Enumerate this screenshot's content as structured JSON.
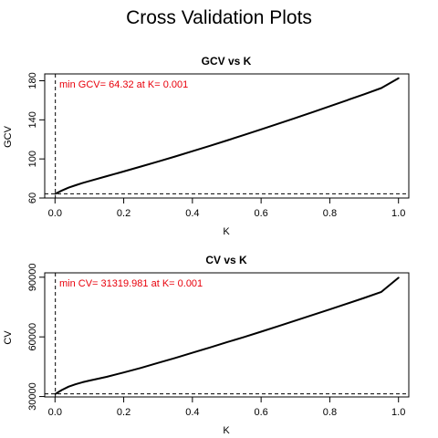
{
  "main_title": "Cross Validation Plots",
  "chart_data": [
    {
      "type": "line",
      "title": "GCV vs K",
      "xlabel": "K",
      "ylabel": "GCV",
      "xlim": [
        -0.03,
        1.03
      ],
      "ylim": [
        60,
        187
      ],
      "x_ticks": [
        0,
        0.2,
        0.4,
        0.6,
        0.8,
        1
      ],
      "x_tick_labels": [
        "0.0",
        "0.2",
        "0.4",
        "0.6",
        "0.8",
        "1.0"
      ],
      "y_ticks": [
        60,
        100,
        140,
        180
      ],
      "y_tick_labels": [
        "60",
        "100",
        "140",
        "180"
      ],
      "x": [
        0.001,
        0.01,
        0.02,
        0.04,
        0.06,
        0.08,
        0.1,
        0.15,
        0.2,
        0.25,
        0.3,
        0.35,
        0.4,
        0.45,
        0.5,
        0.55,
        0.6,
        0.65,
        0.7,
        0.75,
        0.8,
        0.85,
        0.9,
        0.95,
        1.0
      ],
      "y": [
        64.32,
        66.0,
        67.7,
        70.6,
        73.1,
        75.3,
        77.4,
        82.3,
        87.2,
        92.2,
        97.3,
        102.5,
        107.9,
        113.3,
        118.8,
        124.5,
        130.2,
        136.0,
        141.9,
        147.9,
        153.9,
        160.0,
        166.2,
        172.5,
        182.5
      ],
      "min_vline_x": 0.001,
      "min_hline_y": 64.32,
      "annotation": "min GCV= 64.32  at K= 0.001"
    },
    {
      "type": "line",
      "title": "CV vs K",
      "xlabel": "K",
      "ylabel": "CV",
      "xlim": [
        -0.03,
        1.03
      ],
      "ylim": [
        29800,
        92200
      ],
      "x_ticks": [
        0,
        0.2,
        0.4,
        0.6,
        0.8,
        1
      ],
      "x_tick_labels": [
        "0.0",
        "0.2",
        "0.4",
        "0.6",
        "0.8",
        "1.0"
      ],
      "y_ticks": [
        30000,
        60000,
        90000
      ],
      "y_tick_labels": [
        "30000",
        "60000",
        "90000"
      ],
      "x": [
        0.001,
        0.01,
        0.02,
        0.04,
        0.06,
        0.08,
        0.1,
        0.15,
        0.2,
        0.25,
        0.3,
        0.35,
        0.4,
        0.45,
        0.5,
        0.55,
        0.6,
        0.65,
        0.7,
        0.75,
        0.8,
        0.85,
        0.9,
        0.95,
        1.0
      ],
      "y": [
        31319.981,
        32300,
        33300,
        35000,
        36200,
        37200,
        38000,
        39900,
        42100,
        44400,
        46900,
        49400,
        52000,
        54600,
        57300,
        59900,
        62600,
        65400,
        68200,
        71000,
        73800,
        76700,
        79600,
        82600,
        89700
      ],
      "min_vline_x": 0.001,
      "min_hline_y": 31319.981,
      "annotation": "min CV= 31319.981  at K= 0.001"
    }
  ]
}
